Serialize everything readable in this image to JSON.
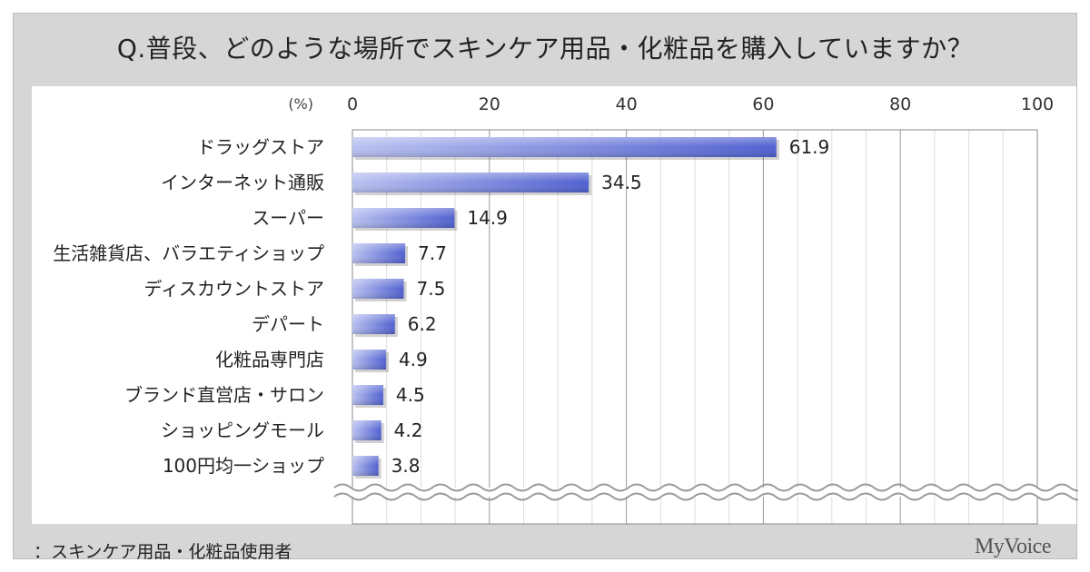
{
  "title": "Q.普段、どのような場所でスキンケア用品・化粧品を購入していますか？",
  "footer": {
    "note": "：スキンケア用品・化粧品使用者",
    "brand": "MyVoice"
  },
  "chart_data": {
    "type": "bar",
    "orientation": "horizontal",
    "unit_label": "(%)",
    "xlim": [
      0,
      100
    ],
    "ticks": [
      0,
      20,
      40,
      60,
      80,
      100
    ],
    "grid": true,
    "legend": "none",
    "categories": [
      "ドラッグストア",
      "インターネット通販",
      "スーパー",
      "生活雑貨店、バラエティショップ",
      "ディスカウントストア",
      "デパート",
      "化粧品専門店",
      "ブランド直営店・サロン",
      "ショッピングモール",
      "100円均一ショップ"
    ],
    "values": [
      61.9,
      34.5,
      14.9,
      7.7,
      7.5,
      6.2,
      4.9,
      4.5,
      4.2,
      3.8
    ],
    "value_labels": [
      "61.9",
      "34.5",
      "14.9",
      "7.7",
      "7.5",
      "6.2",
      "4.9",
      "4.5",
      "4.2",
      "3.8"
    ],
    "bar_color": "#5060d0",
    "bar_color_light": "#b8c0f0"
  }
}
